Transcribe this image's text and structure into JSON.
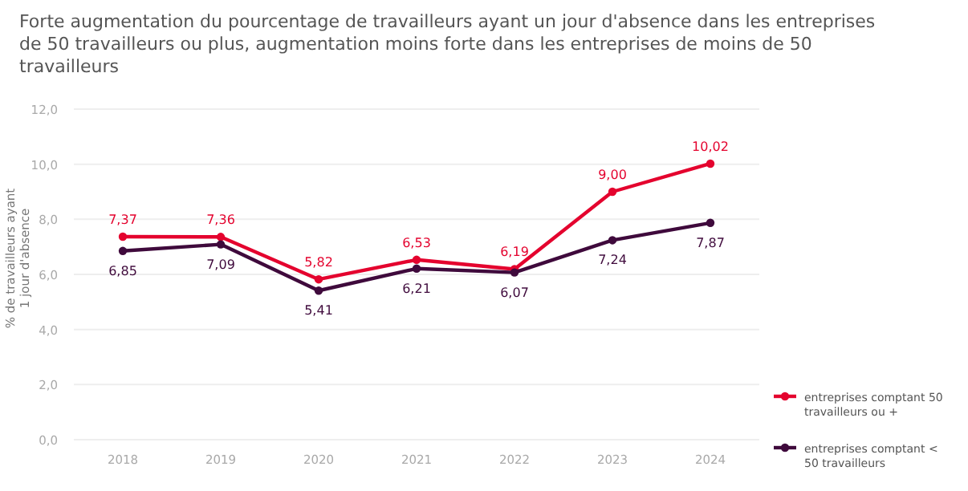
{
  "chart_data": {
    "type": "line",
    "title": "Forte augmentation du pourcentage de travailleurs ayant un jour d'absence dans les entreprises de 50 travailleurs ou plus, augmentation moins forte dans les entreprises de moins de 50 travailleurs",
    "ylabel": "% de travailleurs ayant 1 jour d'absence",
    "categories": [
      "2018",
      "2019",
      "2020",
      "2021",
      "2022",
      "2023",
      "2024"
    ],
    "series": [
      {
        "name": "entreprises comptant 50 travailleurs ou +",
        "color": "#e4032e",
        "values": [
          7.37,
          7.36,
          5.82,
          6.53,
          6.19,
          9.0,
          10.02
        ],
        "value_labels": [
          "7,37",
          "7,36",
          "5,82",
          "6,53",
          "6,19",
          "9,00",
          "10,02"
        ]
      },
      {
        "name": "entreprises comptant < 50 travailleurs",
        "color": "#3f0a3c",
        "values": [
          6.85,
          7.09,
          5.41,
          6.21,
          6.07,
          7.24,
          7.87
        ],
        "value_labels": [
          "6,85",
          "7,09",
          "5,41",
          "6,21",
          "6,07",
          "7,24",
          "7,87"
        ]
      }
    ],
    "ylim": [
      0,
      12
    ],
    "yticks": [
      {
        "value": 0,
        "label": "0,0"
      },
      {
        "value": 2,
        "label": "2,0"
      },
      {
        "value": 4,
        "label": "4,0"
      },
      {
        "value": 6,
        "label": "6,0"
      },
      {
        "value": 8,
        "label": "8,0"
      },
      {
        "value": 10,
        "label": "10,0"
      },
      {
        "value": 12,
        "label": "12,0"
      }
    ],
    "grid": "y",
    "legend": "bottom right",
    "marker": "circle",
    "line_style": "solid"
  }
}
